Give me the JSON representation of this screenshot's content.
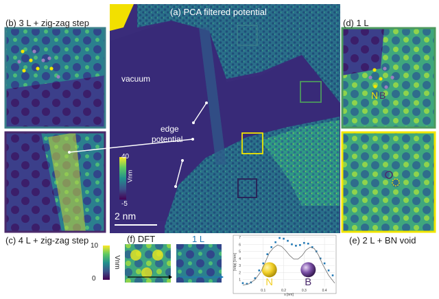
{
  "panels": {
    "a": {
      "title": "(a) PCA filtered potential",
      "vacuum": "vacuum",
      "edge_line1": "edge",
      "edge_line2": "potential",
      "scalebar": "2 nm"
    },
    "b": {
      "title": "(b) 3 L + zig-zag step"
    },
    "c": {
      "title": "(c) 4 L + zig-zag step"
    },
    "d": {
      "title": "(d) 1 L",
      "letter_n": "N",
      "letter_b": "B"
    },
    "e": {
      "title": "(e) 2 L + BN void"
    },
    "f": {
      "title": "(f) DFT",
      "right_label": "1 L"
    }
  },
  "colorbar_a": {
    "max": "40",
    "min": "-5",
    "unit": "Vnm"
  },
  "colorbar_f": {
    "max": "10",
    "min": "0",
    "unit": "Vnm"
  },
  "colors": {
    "viridis_dark": "#440154",
    "viridis_mid": "#21918c",
    "viridis_light": "#fde725",
    "yellow_box": "#f2e600",
    "green_box": "#4c9a5e",
    "purple_box": "#4a2a6b",
    "teal_box": "#3b7f8a",
    "series": "#1f77b4"
  },
  "chart_data": {
    "type": "scatter",
    "xlabel": "s [nm]",
    "ylabel": "|Vdp| [Vnm]",
    "xlim": [
      0,
      0.45
    ],
    "ylim": [
      0,
      7
    ],
    "xticks": [
      "0.1",
      "0.2",
      "0.3",
      "0.4"
    ],
    "yticks": [
      "1",
      "2",
      "3",
      "4",
      "5",
      "6",
      "7"
    ],
    "atoms": [
      {
        "label": "N",
        "x": 0.13
      },
      {
        "label": "B",
        "x": 0.32
      }
    ],
    "series": [
      {
        "style": "markers",
        "x": [
          0.0,
          0.02,
          0.04,
          0.06,
          0.08,
          0.1,
          0.12,
          0.14,
          0.16,
          0.18,
          0.2,
          0.22,
          0.24,
          0.26,
          0.28,
          0.3,
          0.32,
          0.34,
          0.36,
          0.38,
          0.4,
          0.42,
          0.44
        ],
        "y": [
          0.5,
          0.4,
          0.6,
          1.2,
          2.3,
          3.3,
          4.6,
          5.6,
          6.3,
          6.9,
          6.8,
          6.5,
          6.0,
          5.8,
          5.9,
          6.2,
          6.1,
          5.6,
          5.0,
          4.0,
          3.3,
          2.3,
          1.6
        ]
      },
      {
        "style": "line",
        "x": [
          0.0,
          0.03,
          0.06,
          0.09,
          0.11,
          0.13,
          0.15,
          0.17,
          0.19,
          0.21,
          0.23,
          0.25,
          0.27,
          0.29,
          0.31,
          0.33,
          0.35,
          0.37,
          0.39,
          0.42,
          0.45
        ],
        "y": [
          0.2,
          0.4,
          1.0,
          2.2,
          3.5,
          4.8,
          5.5,
          5.9,
          5.7,
          5.1,
          4.4,
          3.9,
          3.9,
          4.4,
          5.2,
          5.6,
          5.4,
          4.5,
          3.2,
          1.6,
          0.5
        ]
      }
    ]
  }
}
